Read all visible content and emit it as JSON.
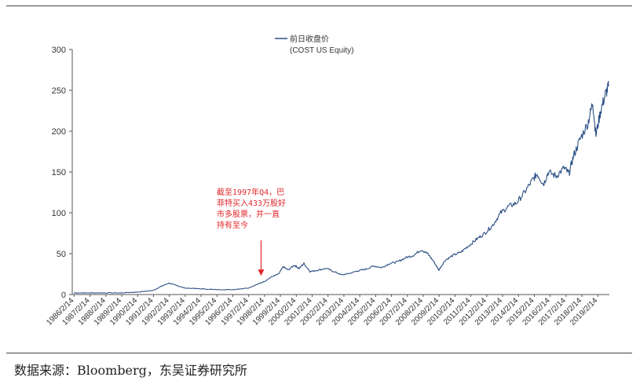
{
  "chart_data": {
    "type": "line",
    "legend": [
      "前日收盘价",
      "(COST US Equity)"
    ],
    "series": [
      {
        "name": "前日收盘价 (COST US Equity)",
        "color": "#2c4f85",
        "x": [
          1986.1,
          1987.1,
          1988.1,
          1989.1,
          1990.1,
          1991.1,
          1991.6,
          1992.1,
          1992.6,
          1993.1,
          1994.1,
          1995.1,
          1996.1,
          1997.1,
          1997.6,
          1998.1,
          1998.6,
          1999.0,
          1999.3,
          1999.6,
          2000.0,
          2000.3,
          2000.6,
          2001.0,
          2001.5,
          2002.0,
          2002.5,
          2003.0,
          2003.5,
          2004.0,
          2004.5,
          2005.0,
          2005.5,
          2006.0,
          2006.5,
          2007.0,
          2007.5,
          2008.0,
          2008.4,
          2008.8,
          2009.1,
          2009.5,
          2010.0,
          2010.5,
          2011.0,
          2011.5,
          2012.0,
          2012.5,
          2013.0,
          2013.5,
          2014.0,
          2014.5,
          2015.0,
          2015.3,
          2015.7,
          2016.0,
          2016.5,
          2017.0,
          2017.3,
          2017.6,
          2018.0,
          2018.5,
          2018.8,
          2019.0,
          2019.3,
          2019.6,
          2019.8
        ],
        "values": [
          2,
          2,
          2,
          2,
          3,
          5,
          10,
          14,
          11,
          8,
          7,
          6,
          6,
          8,
          12,
          16,
          22,
          25,
          34,
          30,
          36,
          32,
          38,
          28,
          30,
          32,
          28,
          24,
          26,
          29,
          31,
          35,
          33,
          38,
          40,
          45,
          48,
          55,
          50,
          40,
          30,
          42,
          48,
          52,
          60,
          68,
          75,
          85,
          100,
          108,
          112,
          125,
          140,
          148,
          135,
          150,
          145,
          155,
          148,
          170,
          190,
          210,
          235,
          195,
          225,
          245,
          255
        ]
      }
    ],
    "ylim": [
      0,
      300
    ],
    "yticks": [
      0,
      50,
      100,
      150,
      200,
      250,
      300
    ],
    "xlim": [
      1986.0,
      2019.85
    ],
    "xtick_labels": [
      "1986/2/14",
      "1987/2/14",
      "1988/2/14",
      "1989/2/14",
      "1990/2/14",
      "1991/2/14",
      "1992/2/14",
      "1993/2/14",
      "1994/2/14",
      "1995/2/14",
      "1996/2/14",
      "1997/2/14",
      "1998/2/14",
      "1999/2/14",
      "2000/2/14",
      "2001/2/14",
      "2002/2/14",
      "2003/2/14",
      "2004/2/14",
      "2005/2/14",
      "2006/2/14",
      "2007/2/14",
      "2008/2/14",
      "2009/2/14",
      "2010/2/14",
      "2011/2/14",
      "2012/2/14",
      "2013/2/14",
      "2014/2/14",
      "2015/2/14",
      "2016/2/14",
      "2017/2/14",
      "2018/2/14",
      "2019/2/14"
    ],
    "annotation": {
      "lines": [
        "截至1997年Q4，巴",
        "菲特买入433万股好",
        "市多股票，并一直",
        "持有至今"
      ],
      "color": "#e0282e",
      "arrow_x": 1997.9,
      "arrow_y": 23
    },
    "grid": false
  },
  "source": "数据来源：Bloomberg，东吴证券研究所"
}
